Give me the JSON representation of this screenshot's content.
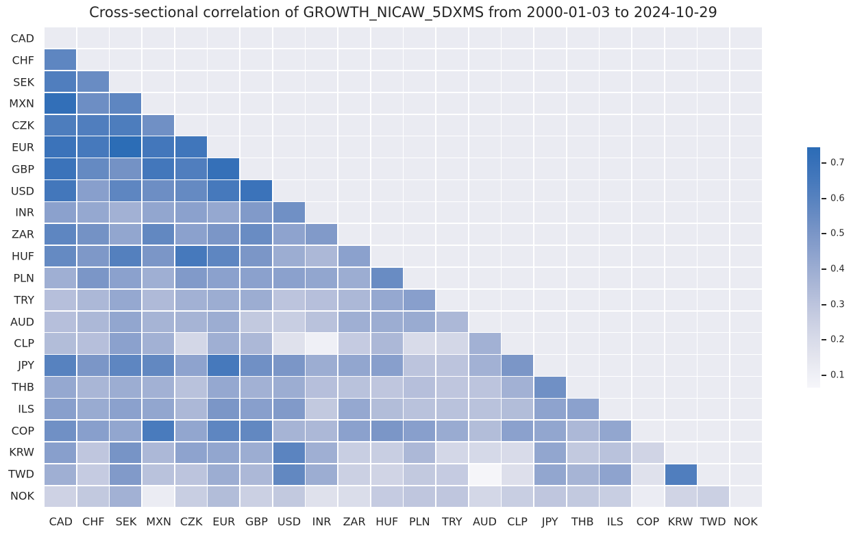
{
  "chart_data": {
    "type": "heatmap",
    "title": "Cross-sectional correlation of GROWTH_NICAW_5DXMS from 2000-01-03 to 2024-10-29",
    "categories": [
      "CAD",
      "CHF",
      "SEK",
      "MXN",
      "CZK",
      "EUR",
      "GBP",
      "USD",
      "INR",
      "ZAR",
      "HUF",
      "PLN",
      "TRY",
      "AUD",
      "CLP",
      "JPY",
      "THB",
      "ILS",
      "COP",
      "KRW",
      "TWD",
      "NOK"
    ],
    "mask": "upper triangle including diagonal is masked (empty)",
    "values_lower_triangle": [
      [],
      [
        0.58
      ],
      [
        0.62,
        0.55
      ],
      [
        0.72,
        0.54,
        0.58
      ],
      [
        0.63,
        0.62,
        0.63,
        0.53
      ],
      [
        0.69,
        0.65,
        0.74,
        0.66,
        0.67
      ],
      [
        0.69,
        0.56,
        0.52,
        0.66,
        0.62,
        0.71
      ],
      [
        0.66,
        0.46,
        0.58,
        0.54,
        0.56,
        0.65,
        0.69
      ],
      [
        0.45,
        0.42,
        0.38,
        0.43,
        0.45,
        0.42,
        0.48,
        0.53
      ],
      [
        0.58,
        0.52,
        0.43,
        0.57,
        0.45,
        0.5,
        0.55,
        0.44,
        0.48
      ],
      [
        0.56,
        0.49,
        0.61,
        0.5,
        0.65,
        0.58,
        0.5,
        0.4,
        0.35,
        0.45
      ],
      [
        0.39,
        0.5,
        0.45,
        0.39,
        0.48,
        0.45,
        0.45,
        0.45,
        0.43,
        0.4,
        0.55
      ],
      [
        0.32,
        0.35,
        0.42,
        0.34,
        0.38,
        0.4,
        0.4,
        0.3,
        0.32,
        0.35,
        0.42,
        0.46
      ],
      [
        0.32,
        0.35,
        0.43,
        0.37,
        0.37,
        0.4,
        0.28,
        0.26,
        0.31,
        0.39,
        0.4,
        0.41,
        0.35
      ],
      [
        0.33,
        0.32,
        0.45,
        0.38,
        0.22,
        0.39,
        0.35,
        0.17,
        0.1,
        0.27,
        0.35,
        0.2,
        0.22,
        0.38
      ],
      [
        0.6,
        0.5,
        0.58,
        0.57,
        0.44,
        0.65,
        0.53,
        0.5,
        0.4,
        0.43,
        0.46,
        0.3,
        0.3,
        0.38,
        0.5
      ],
      [
        0.42,
        0.36,
        0.4,
        0.38,
        0.31,
        0.42,
        0.38,
        0.4,
        0.32,
        0.31,
        0.29,
        0.32,
        0.29,
        0.3,
        0.38,
        0.53
      ],
      [
        0.46,
        0.41,
        0.45,
        0.43,
        0.35,
        0.5,
        0.46,
        0.48,
        0.28,
        0.42,
        0.33,
        0.31,
        0.31,
        0.31,
        0.33,
        0.44,
        0.45
      ],
      [
        0.53,
        0.46,
        0.43,
        0.64,
        0.43,
        0.58,
        0.57,
        0.37,
        0.35,
        0.45,
        0.5,
        0.46,
        0.41,
        0.33,
        0.45,
        0.43,
        0.35,
        0.43
      ],
      [
        0.46,
        0.29,
        0.51,
        0.35,
        0.44,
        0.43,
        0.4,
        0.59,
        0.39,
        0.26,
        0.26,
        0.35,
        0.22,
        0.21,
        0.2,
        0.43,
        0.28,
        0.31,
        0.23
      ],
      [
        0.39,
        0.27,
        0.48,
        0.31,
        0.3,
        0.4,
        0.35,
        0.57,
        0.4,
        0.25,
        0.23,
        0.28,
        0.27,
        0.07,
        0.18,
        0.43,
        0.37,
        0.44,
        0.17,
        0.62
      ],
      [
        0.24,
        0.28,
        0.38,
        0.12,
        0.26,
        0.33,
        0.25,
        0.28,
        0.17,
        0.19,
        0.27,
        0.29,
        0.29,
        0.22,
        0.26,
        0.29,
        0.28,
        0.26,
        0.12,
        0.23,
        0.25
      ]
    ],
    "colorbar": {
      "vmin": 0.065,
      "vmax": 0.745,
      "ticks": [
        0.7,
        0.6,
        0.5,
        0.4,
        0.3,
        0.2,
        0.1
      ],
      "position": "right"
    },
    "colors": {
      "colormap_stops": [
        [
          0.065,
          "#f6f6fa"
        ],
        [
          0.1,
          "#eff0f6"
        ],
        [
          0.15,
          "#e4e5ee"
        ],
        [
          0.2,
          "#d8dbe9"
        ],
        [
          0.25,
          "#cbd0e3"
        ],
        [
          0.3,
          "#bcc4dd"
        ],
        [
          0.35,
          "#acb8d7"
        ],
        [
          0.4,
          "#9cadd2"
        ],
        [
          0.45,
          "#8ba1cd"
        ],
        [
          0.5,
          "#7b96c7"
        ],
        [
          0.55,
          "#698cc3"
        ],
        [
          0.6,
          "#5782bf"
        ],
        [
          0.65,
          "#4679bc"
        ],
        [
          0.7,
          "#3871b9"
        ],
        [
          0.745,
          "#2b6cb6"
        ]
      ],
      "masked_cell": "#eaebf2",
      "grid_line": "#ffffff",
      "figure_background": "#ffffff",
      "label_text": "#262626"
    },
    "x_tick_labels": [
      "CAD",
      "CHF",
      "SEK",
      "MXN",
      "CZK",
      "EUR",
      "GBP",
      "USD",
      "INR",
      "ZAR",
      "HUF",
      "PLN",
      "TRY",
      "AUD",
      "CLP",
      "JPY",
      "THB",
      "ILS",
      "COP",
      "KRW",
      "TWD",
      "NOK"
    ],
    "y_tick_labels": [
      "CAD",
      "CHF",
      "SEK",
      "MXN",
      "CZK",
      "EUR",
      "GBP",
      "USD",
      "INR",
      "ZAR",
      "HUF",
      "PLN",
      "TRY",
      "AUD",
      "CLP",
      "JPY",
      "THB",
      "ILS",
      "COP",
      "KRW",
      "TWD",
      "NOK"
    ],
    "legend": "none",
    "grid": "white cell separators"
  }
}
